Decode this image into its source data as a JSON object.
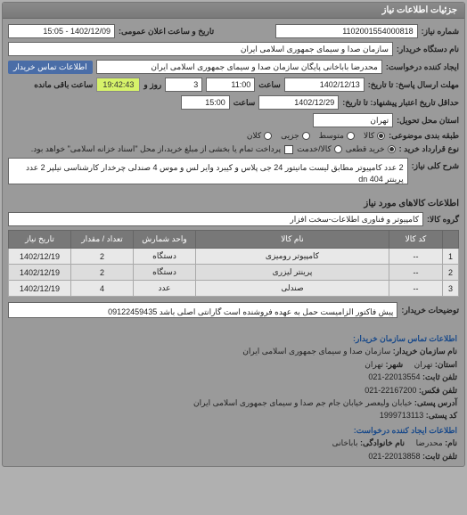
{
  "panel_title": "جزئیات اطلاعات نیاز",
  "top": {
    "req_no_label": "شماره نیاز:",
    "req_no": "1102001554000818",
    "pub_date_label": "تاریخ و ساعت اعلان عمومی:",
    "pub_date": "1402/12/09 - 15:05",
    "buyer_org_label": "نام دستگاه خریدار:",
    "buyer_org": "سازمان صدا و سیمای جمهوری اسلامی ایران",
    "creator_label": "ایجاد کننده درخواست:",
    "creator": "محدرضا   باباخانی پایگان سازمان صدا و سیمای جمهوری اسلامی ایران",
    "contact_link": "اطلاعات تماس خریدار",
    "deadline_send_label": "مهلت ارسال پاسخ: تا تاریخ:",
    "deadline_send_date": "1402/12/13",
    "saat1": "ساعت",
    "deadline_send_time": "11:00",
    "remain_label_pre": "",
    "remain_days": "3",
    "remain_days_label": "روز و",
    "remain_time": "19:42:43",
    "remain_suffix": "ساعت باقی مانده",
    "validity_label": "حداقل تاریخ اعتبار پیشنهاد: تا تاریخ:",
    "validity_date": "1402/12/29",
    "saat2": "ساعت",
    "validity_time": "15:00",
    "delivery_state_label": "استان محل تحویل:",
    "tehran": "تهران",
    "pack_label": "طبقه بندی موضوعی:",
    "pack_opts": {
      "a": "کالا",
      "b": "متوسط",
      "c": "جزیی",
      "d": "کلان"
    },
    "contract_label": "نوع قرارداد خرید :",
    "contract_opts": {
      "a": "خرید قطعی",
      "b": "کالا/خدمت"
    },
    "contract_note": "پرداخت تمام یا بخشی از مبلغ خرید،از محل \"اسناد خزانه اسلامی\" خواهد بود.",
    "desc_label": "شرح کلی نیاز:",
    "desc_text": "2 عدد کامپیوتر مطابق لیست مانیتور 24 جی پلاس و کیبرد وایر لس و موس 4 صندلی چرخدار کارشناسی نیلپر 2 عدد پرینتر dn 404"
  },
  "items_title": "اطلاعات کالاهای مورد نیاز",
  "group_label": "گروه کالا:",
  "group_value": "کامپیوتر و فناوری اطلاعات-سخت افزار",
  "table": {
    "headers": [
      "",
      "کد کالا",
      "نام کالا",
      "واحد شمارش",
      "تعداد / مقدار",
      "تاریخ نیاز"
    ],
    "rows": [
      [
        "1",
        "--",
        "کامپیوتر رومیزی",
        "دستگاه",
        "2",
        "1402/12/19"
      ],
      [
        "2",
        "--",
        "پرینتر لیزری",
        "دستگاه",
        "2",
        "1402/12/19"
      ],
      [
        "3",
        "--",
        "صندلی",
        "عدد",
        "4",
        "1402/12/19"
      ]
    ]
  },
  "buyer_note_label": "توضیحات خریدار:",
  "buyer_note": "پیش فاکتور الزامیست حمل به عهده فروشنده است گارانتی اصلی باشد 09122459435",
  "contact": {
    "hdr1": "اطلاعات تماس سازمان خریدار:",
    "org_label": "نام سازمان خریدار:",
    "org": "سازمان صدا و سیمای جمهوری اسلامی ایران",
    "city_label": "شهر:",
    "city": "تهران",
    "state_label": "استان:",
    "state": "تهران",
    "tel_label": "تلفن ثابت:",
    "tel": "22013554-021",
    "fax_label": "تلفن فکس:",
    "fax": "22167200-021",
    "addr_label": "آدرس پستی:",
    "addr": "خیابان ولیعصر خیابان جام جم صدا و سیمای جمهوری اسلامی ایران",
    "zip_label": "کد پستی:",
    "zip": "1999713113",
    "hdr2": "اطلاعات ایجاد کننده درخواست:",
    "name_label": "نام:",
    "name": "محدرضا",
    "lname_label": "نام خانوادگی:",
    "lname": "باباخانی",
    "tel2_label": "تلفن ثابت:",
    "tel2": "22013858-021"
  }
}
